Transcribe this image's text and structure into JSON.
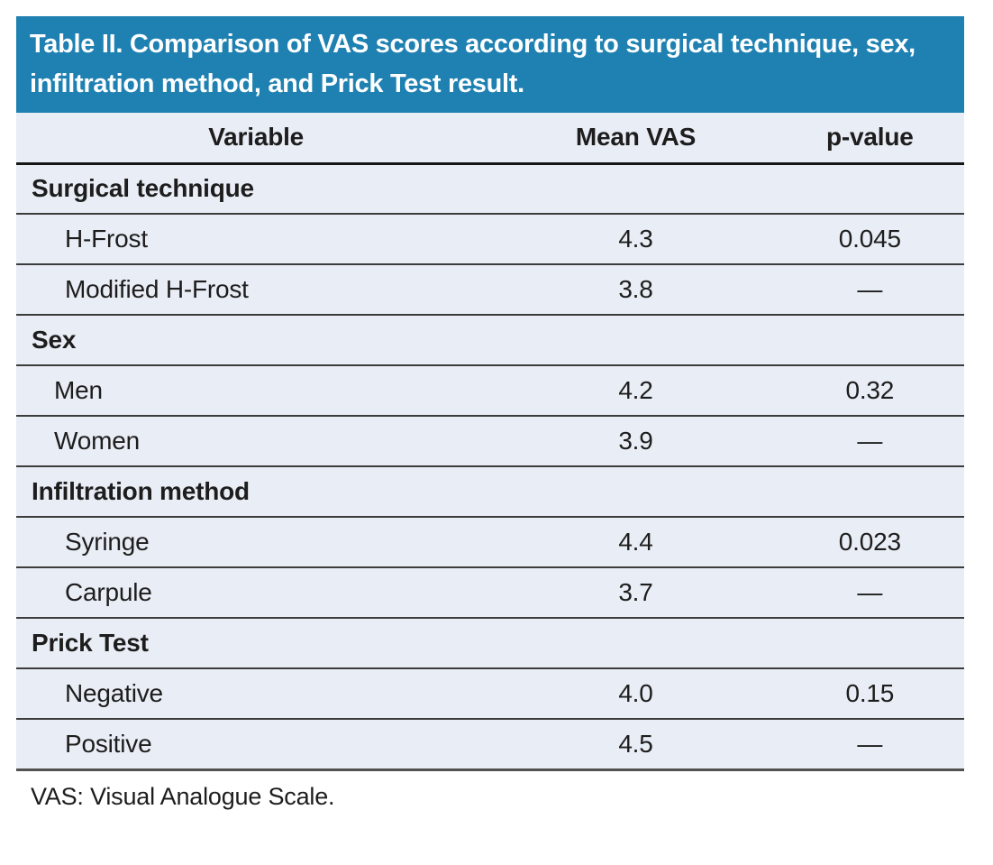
{
  "title": "Table II. Comparison of VAS scores according to surgical technique, sex, infiltration method, and Prick Test result.",
  "columns": {
    "variable": "Variable",
    "mean_vas": "Mean VAS",
    "p_value": "p-value"
  },
  "sections": [
    {
      "label": "Surgical technique",
      "rows": [
        [
          "H-Frost",
          "4.3",
          "0.045"
        ],
        [
          "Modified H-Frost",
          "3.8",
          "—"
        ]
      ]
    },
    {
      "label": "Sex",
      "rows": [
        [
          "Men",
          "4.2",
          "0.32"
        ],
        [
          "Women",
          "3.9",
          "—"
        ]
      ]
    },
    {
      "label": "Infiltration method",
      "rows": [
        [
          "Syringe",
          "4.4",
          "0.023"
        ],
        [
          "Carpule",
          "3.7",
          "—"
        ]
      ]
    },
    {
      "label": "Prick Test",
      "rows": [
        [
          "Negative",
          "4.0",
          "0.15"
        ],
        [
          "Positive",
          "4.5",
          "—"
        ]
      ]
    }
  ],
  "footnote": "VAS: Visual Analogue Scale.",
  "colors": {
    "header_bg": "#1e81b2",
    "row_bg": "#e9edf5",
    "rule_dark": "#161616",
    "rule_gray": "#3c3c3c",
    "rule_bottom": "#515151",
    "text": "#1d1d1d",
    "title_text": "#ffffff"
  }
}
